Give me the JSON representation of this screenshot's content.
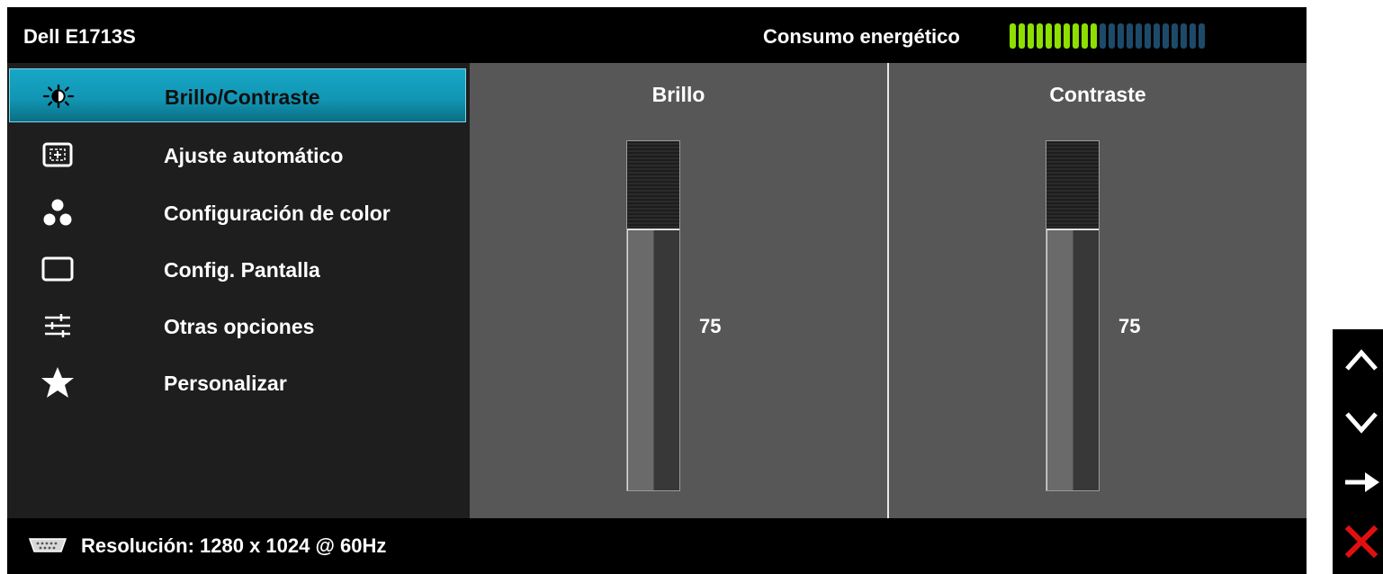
{
  "header": {
    "model": "Dell E1713S",
    "energy_label": "Consumo energético",
    "energy_level": 0.45,
    "energy_segments_total": 22,
    "energy_segments_on": 10,
    "colors": {
      "on": "#8ee000",
      "off": "#1e4a6a"
    }
  },
  "menu": {
    "accent_color": "#139bb9",
    "items": [
      {
        "label": "Brillo/Contraste",
        "icon": "brightness-icon",
        "selected": true
      },
      {
        "label": "Ajuste  automático",
        "icon": "auto-adjust-icon",
        "selected": false
      },
      {
        "label": "Configuración de color",
        "icon": "color-dots-icon",
        "selected": false
      },
      {
        "label": "Config. Pantalla",
        "icon": "display-rect-icon",
        "selected": false
      },
      {
        "label": "Otras opciones",
        "icon": "sliders-icon",
        "selected": false
      },
      {
        "label": "Personalizar",
        "icon": "star-icon",
        "selected": false
      }
    ]
  },
  "content": {
    "brightness": {
      "title": "Brillo",
      "value": 75
    },
    "contrast": {
      "title": "Contraste",
      "value": 75
    }
  },
  "footer": {
    "icon": "vga-connector-icon",
    "resolution": "Resolución: 1280 x 1024 @ 60Hz"
  },
  "buttons": [
    {
      "icon": "chevron-up-icon",
      "action": "up"
    },
    {
      "icon": "chevron-down-icon",
      "action": "down"
    },
    {
      "icon": "arrow-right-icon",
      "action": "enter"
    },
    {
      "icon": "close-icon",
      "action": "exit",
      "color": "#e01010"
    }
  ]
}
